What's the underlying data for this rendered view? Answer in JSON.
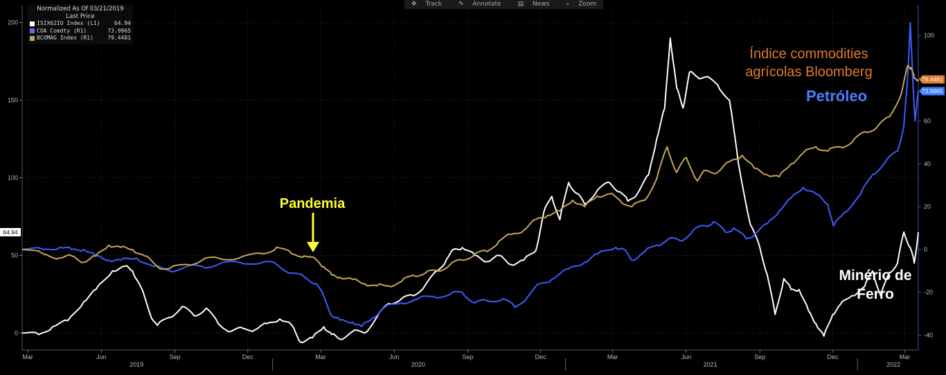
{
  "toolbar": {
    "track": "Track",
    "annotate": "Annotate",
    "news": "News",
    "zoom": "Zoom"
  },
  "legend": {
    "header_line1": "Normalized As Of 03/21/2019",
    "header_line2": "Last Price",
    "items": [
      {
        "label": "ISIX62IU Index  (L1)",
        "value": "64.94",
        "color": "#ffffff"
      },
      {
        "label": "COA Comdty  (R1)",
        "value": "73.9965",
        "color": "#5b6cff"
      },
      {
        "label": "BCOMAG Index  (R1)",
        "value": "79.4481",
        "color": "#c8a55a"
      }
    ]
  },
  "annotations": {
    "pandemia": "Pandemia",
    "ag_index_line1": "Índice commodities",
    "ag_index_line2": "agrícolas Bloomberg",
    "petroleo": "Petróleo",
    "iron_line1": "Minério de",
    "iron_line2": "Ferro"
  },
  "chart_data": {
    "type": "line",
    "left_axis": {
      "ticks": [
        0,
        50,
        100,
        150,
        200
      ],
      "range": [
        -11,
        211
      ]
    },
    "right_axis": {
      "ticks": [
        -40,
        -20,
        0,
        20,
        40,
        60,
        80,
        100
      ],
      "range": [
        -47,
        114
      ]
    },
    "x_axis": {
      "range": [
        "2019-02-22",
        "2022-03-18"
      ],
      "month_labels": [
        {
          "date": "2019-03-01",
          "label": "Mar"
        },
        {
          "date": "2019-06-01",
          "label": "Jun"
        },
        {
          "date": "2019-09-01",
          "label": "Sep"
        },
        {
          "date": "2019-12-01",
          "label": "Dec"
        },
        {
          "date": "2020-03-01",
          "label": "Mar"
        },
        {
          "date": "2020-06-01",
          "label": "Jun"
        },
        {
          "date": "2020-09-01",
          "label": "Sep"
        },
        {
          "date": "2020-12-01",
          "label": "Dec"
        },
        {
          "date": "2021-03-01",
          "label": "Mar"
        },
        {
          "date": "2021-06-01",
          "label": "Jun"
        },
        {
          "date": "2021-09-01",
          "label": "Sep"
        },
        {
          "date": "2021-12-01",
          "label": "Dec"
        },
        {
          "date": "2022-03-01",
          "label": "Mar"
        }
      ],
      "year_labels": [
        {
          "date": "2019-07-15",
          "label": "2019"
        },
        {
          "date": "2020-07-01",
          "label": "2020"
        },
        {
          "date": "2021-07-01",
          "label": "2021"
        },
        {
          "date": "2022-02-15",
          "label": "2022"
        }
      ],
      "year_separators": [
        "2020-01-01",
        "2021-01-01",
        "2022-01-01"
      ]
    },
    "last_value_tags": [
      {
        "axis": "left",
        "value": 64.94,
        "label": "64.94",
        "color": "#ffffff"
      },
      {
        "axis": "right",
        "value": 79.4481,
        "label": "79.4481",
        "color": "#e07a2f"
      },
      {
        "axis": "right",
        "value": 73.9965,
        "label": "73.9965",
        "color": "#3d7bff"
      }
    ],
    "series": [
      {
        "name": "ISIX62IU Index",
        "axis": "left",
        "color": "#ffffff",
        "points": [
          [
            "2019-02-22",
            0
          ],
          [
            "2019-03-15",
            -1
          ],
          [
            "2019-04-01",
            4
          ],
          [
            "2019-04-20",
            8
          ],
          [
            "2019-05-10",
            20
          ],
          [
            "2019-05-25",
            28
          ],
          [
            "2019-06-15",
            40
          ],
          [
            "2019-07-01",
            43
          ],
          [
            "2019-07-10",
            40
          ],
          [
            "2019-07-20",
            30
          ],
          [
            "2019-08-01",
            12
          ],
          [
            "2019-08-10",
            5
          ],
          [
            "2019-08-25",
            10
          ],
          [
            "2019-09-10",
            17
          ],
          [
            "2019-09-25",
            11
          ],
          [
            "2019-10-10",
            16
          ],
          [
            "2019-10-25",
            6
          ],
          [
            "2019-11-10",
            1
          ],
          [
            "2019-11-25",
            3
          ],
          [
            "2019-12-10",
            2
          ],
          [
            "2019-12-25",
            6
          ],
          [
            "2020-01-10",
            9
          ],
          [
            "2020-01-25",
            5
          ],
          [
            "2020-02-05",
            -6
          ],
          [
            "2020-02-20",
            -3
          ],
          [
            "2020-03-05",
            4
          ],
          [
            "2020-03-15",
            -1
          ],
          [
            "2020-03-25",
            -4
          ],
          [
            "2020-04-10",
            1
          ],
          [
            "2020-04-25",
            0
          ],
          [
            "2020-05-10",
            10
          ],
          [
            "2020-05-25",
            19
          ],
          [
            "2020-06-10",
            22
          ],
          [
            "2020-06-25",
            24
          ],
          [
            "2020-07-10",
            31
          ],
          [
            "2020-07-25",
            40
          ],
          [
            "2020-08-05",
            47
          ],
          [
            "2020-08-15",
            54
          ],
          [
            "2020-08-25",
            55
          ],
          [
            "2020-09-10",
            50
          ],
          [
            "2020-09-25",
            46
          ],
          [
            "2020-10-10",
            50
          ],
          [
            "2020-10-25",
            44
          ],
          [
            "2020-11-10",
            47
          ],
          [
            "2020-11-25",
            53
          ],
          [
            "2020-12-05",
            78
          ],
          [
            "2020-12-15",
            88
          ],
          [
            "2020-12-25",
            73
          ],
          [
            "2021-01-05",
            97
          ],
          [
            "2021-01-15",
            90
          ],
          [
            "2021-01-25",
            83
          ],
          [
            "2021-02-10",
            92
          ],
          [
            "2021-02-25",
            97
          ],
          [
            "2021-03-10",
            91
          ],
          [
            "2021-03-20",
            85
          ],
          [
            "2021-04-01",
            90
          ],
          [
            "2021-04-15",
            102
          ],
          [
            "2021-04-25",
            125
          ],
          [
            "2021-05-05",
            145
          ],
          [
            "2021-05-12",
            190
          ],
          [
            "2021-05-20",
            158
          ],
          [
            "2021-05-28",
            145
          ],
          [
            "2021-06-05",
            168
          ],
          [
            "2021-06-15",
            165
          ],
          [
            "2021-06-25",
            165
          ],
          [
            "2021-07-10",
            160
          ],
          [
            "2021-07-25",
            150
          ],
          [
            "2021-08-05",
            110
          ],
          [
            "2021-08-20",
            70
          ],
          [
            "2021-09-01",
            55
          ],
          [
            "2021-09-10",
            38
          ],
          [
            "2021-09-20",
            12
          ],
          [
            "2021-10-01",
            35
          ],
          [
            "2021-10-10",
            28
          ],
          [
            "2021-10-20",
            28
          ],
          [
            "2021-11-01",
            14
          ],
          [
            "2021-11-10",
            6
          ],
          [
            "2021-11-20",
            -2
          ],
          [
            "2021-12-01",
            12
          ],
          [
            "2021-12-10",
            18
          ],
          [
            "2021-12-25",
            24
          ],
          [
            "2022-01-10",
            30
          ],
          [
            "2022-01-20",
            40
          ],
          [
            "2022-01-30",
            24
          ],
          [
            "2022-02-10",
            39
          ],
          [
            "2022-02-20",
            45
          ],
          [
            "2022-02-28",
            65
          ],
          [
            "2022-03-08",
            55
          ],
          [
            "2022-03-13",
            45
          ],
          [
            "2022-03-18",
            64.94
          ]
        ]
      },
      {
        "name": "COA Comdty",
        "axis": "right",
        "color": "#3d5cff",
        "points": [
          [
            "2019-02-22",
            0
          ],
          [
            "2019-03-20",
            0
          ],
          [
            "2019-04-10",
            1
          ],
          [
            "2019-04-25",
            0
          ],
          [
            "2019-05-10",
            0
          ],
          [
            "2019-05-25",
            -3
          ],
          [
            "2019-06-10",
            -5
          ],
          [
            "2019-06-25",
            -5
          ],
          [
            "2019-07-15",
            -4
          ],
          [
            "2019-08-05",
            -8
          ],
          [
            "2019-08-25",
            -10
          ],
          [
            "2019-09-16",
            -8
          ],
          [
            "2019-10-05",
            -8
          ],
          [
            "2019-10-25",
            -7
          ],
          [
            "2019-11-20",
            -6
          ],
          [
            "2019-12-20",
            -6
          ],
          [
            "2020-01-06",
            -7
          ],
          [
            "2020-01-25",
            -11
          ],
          [
            "2020-02-10",
            -13
          ],
          [
            "2020-02-25",
            -16
          ],
          [
            "2020-03-05",
            -22
          ],
          [
            "2020-03-15",
            -31
          ],
          [
            "2020-03-25",
            -33
          ],
          [
            "2020-04-10",
            -34
          ],
          [
            "2020-04-21",
            -36
          ],
          [
            "2020-05-05",
            -32
          ],
          [
            "2020-05-20",
            -27
          ],
          [
            "2020-06-10",
            -25
          ],
          [
            "2020-07-01",
            -23
          ],
          [
            "2020-07-20",
            -22
          ],
          [
            "2020-08-10",
            -21
          ],
          [
            "2020-08-25",
            -20
          ],
          [
            "2020-09-10",
            -25
          ],
          [
            "2020-09-25",
            -24
          ],
          [
            "2020-10-15",
            -23
          ],
          [
            "2020-10-30",
            -27
          ],
          [
            "2020-11-15",
            -22
          ],
          [
            "2020-11-30",
            -16
          ],
          [
            "2020-12-15",
            -14
          ],
          [
            "2021-01-05",
            -9
          ],
          [
            "2021-01-25",
            -6
          ],
          [
            "2021-02-10",
            -2
          ],
          [
            "2021-03-05",
            1
          ],
          [
            "2021-03-15",
            0
          ],
          [
            "2021-03-25",
            -5
          ],
          [
            "2021-04-10",
            -1
          ],
          [
            "2021-04-25",
            2
          ],
          [
            "2021-05-10",
            5
          ],
          [
            "2021-05-25",
            4
          ],
          [
            "2021-06-10",
            9
          ],
          [
            "2021-06-25",
            11
          ],
          [
            "2021-07-05",
            13
          ],
          [
            "2021-07-20",
            8
          ],
          [
            "2021-07-30",
            10
          ],
          [
            "2021-08-15",
            5
          ],
          [
            "2021-08-25",
            7
          ],
          [
            "2021-09-10",
            12
          ],
          [
            "2021-09-25",
            18
          ],
          [
            "2021-10-10",
            24
          ],
          [
            "2021-10-25",
            29
          ],
          [
            "2021-11-10",
            26
          ],
          [
            "2021-11-25",
            21
          ],
          [
            "2021-12-02",
            11
          ],
          [
            "2021-12-15",
            17
          ],
          [
            "2022-01-05",
            26
          ],
          [
            "2022-01-20",
            35
          ],
          [
            "2022-02-05",
            41
          ],
          [
            "2022-02-20",
            46
          ],
          [
            "2022-02-28",
            58
          ],
          [
            "2022-03-04",
            76
          ],
          [
            "2022-03-08",
            106
          ],
          [
            "2022-03-11",
            80
          ],
          [
            "2022-03-14",
            60
          ],
          [
            "2022-03-18",
            73.9965
          ]
        ]
      },
      {
        "name": "BCOMAG Index",
        "axis": "right",
        "color": "#c8a55a",
        "points": [
          [
            "2019-02-22",
            0
          ],
          [
            "2019-03-20",
            -2
          ],
          [
            "2019-04-10",
            -4
          ],
          [
            "2019-04-25",
            -3
          ],
          [
            "2019-05-10",
            -6
          ],
          [
            "2019-05-25",
            -3
          ],
          [
            "2019-06-10",
            2
          ],
          [
            "2019-06-25",
            1
          ],
          [
            "2019-07-10",
            0
          ],
          [
            "2019-07-25",
            -3
          ],
          [
            "2019-08-10",
            -8
          ],
          [
            "2019-08-25",
            -9
          ],
          [
            "2019-09-16",
            -7
          ],
          [
            "2019-10-05",
            -5
          ],
          [
            "2019-10-25",
            -4
          ],
          [
            "2019-11-20",
            -4
          ],
          [
            "2019-12-20",
            -2
          ],
          [
            "2020-01-06",
            1
          ],
          [
            "2020-01-25",
            -2
          ],
          [
            "2020-02-10",
            -3
          ],
          [
            "2020-02-25",
            -5
          ],
          [
            "2020-03-05",
            -8
          ],
          [
            "2020-03-15",
            -12
          ],
          [
            "2020-03-25",
            -13
          ],
          [
            "2020-04-10",
            -14
          ],
          [
            "2020-04-25",
            -16
          ],
          [
            "2020-05-10",
            -17
          ],
          [
            "2020-05-25",
            -17
          ],
          [
            "2020-06-10",
            -15
          ],
          [
            "2020-06-25",
            -12
          ],
          [
            "2020-07-10",
            -11
          ],
          [
            "2020-07-25",
            -10
          ],
          [
            "2020-08-10",
            -7
          ],
          [
            "2020-08-25",
            -5
          ],
          [
            "2020-09-10",
            -2
          ],
          [
            "2020-09-25",
            -1
          ],
          [
            "2020-10-10",
            4
          ],
          [
            "2020-10-25",
            7
          ],
          [
            "2020-11-10",
            9
          ],
          [
            "2020-11-25",
            14
          ],
          [
            "2020-12-10",
            16
          ],
          [
            "2020-12-25",
            18
          ],
          [
            "2021-01-10",
            23
          ],
          [
            "2021-01-25",
            20
          ],
          [
            "2021-02-10",
            25
          ],
          [
            "2021-02-25",
            26
          ],
          [
            "2021-03-10",
            23
          ],
          [
            "2021-03-25",
            20
          ],
          [
            "2021-04-10",
            23
          ],
          [
            "2021-04-25",
            33
          ],
          [
            "2021-05-08",
            48
          ],
          [
            "2021-05-20",
            36
          ],
          [
            "2021-06-01",
            43
          ],
          [
            "2021-06-15",
            32
          ],
          [
            "2021-06-25",
            37
          ],
          [
            "2021-07-10",
            36
          ],
          [
            "2021-07-25",
            41
          ],
          [
            "2021-08-10",
            44
          ],
          [
            "2021-08-25",
            38
          ],
          [
            "2021-09-10",
            35
          ],
          [
            "2021-09-25",
            34
          ],
          [
            "2021-10-10",
            40
          ],
          [
            "2021-10-25",
            45
          ],
          [
            "2021-11-10",
            48
          ],
          [
            "2021-11-25",
            46
          ],
          [
            "2021-12-10",
            48
          ],
          [
            "2021-12-25",
            50
          ],
          [
            "2022-01-10",
            55
          ],
          [
            "2022-01-25",
            57
          ],
          [
            "2022-02-10",
            62
          ],
          [
            "2022-02-25",
            73
          ],
          [
            "2022-03-05",
            86
          ],
          [
            "2022-03-09",
            85
          ],
          [
            "2022-03-13",
            80
          ],
          [
            "2022-03-18",
            79.4481
          ]
        ]
      }
    ]
  }
}
